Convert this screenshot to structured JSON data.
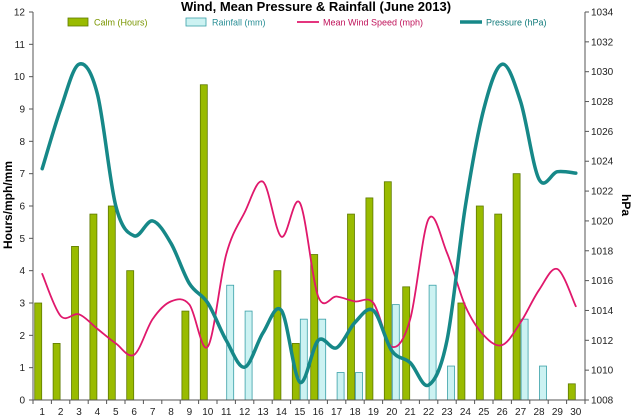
{
  "chart_data": {
    "type": "bar",
    "title": "Wind, Mean Pressure & Rainfall (June 2013)",
    "ylabel_left": "Hours/mph/mm",
    "ylabel_right": "hPa",
    "xlabel": "",
    "ylim_left": [
      0,
      12
    ],
    "ylim_right": [
      1008,
      1034
    ],
    "yticks_left": [
      "0",
      "1",
      "2",
      "3",
      "4",
      "5",
      "6",
      "7",
      "8",
      "9",
      "10",
      "11",
      "12"
    ],
    "yticks_right": [
      "1008",
      "1010",
      "1012",
      "1014",
      "1016",
      "1018",
      "1020",
      "1022",
      "1024",
      "1026",
      "1028",
      "1030",
      "1032",
      "1034"
    ],
    "categories": [
      "1",
      "2",
      "3",
      "4",
      "5",
      "6",
      "7",
      "8",
      "9",
      "10",
      "11",
      "12",
      "13",
      "14",
      "15",
      "16",
      "17",
      "18",
      "19",
      "20",
      "21",
      "22",
      "23",
      "24",
      "25",
      "26",
      "27",
      "28",
      "29",
      "30"
    ],
    "grid": false,
    "legend_position": "top",
    "series": [
      {
        "name": "Calm (Hours)",
        "kind": "bar",
        "axis": "left",
        "color": "#99bb00",
        "values": [
          3.0,
          1.75,
          4.75,
          5.75,
          6.0,
          4.0,
          0,
          0,
          2.75,
          9.75,
          0,
          0,
          0,
          4.0,
          1.75,
          4.5,
          0,
          5.75,
          6.25,
          6.75,
          3.5,
          0,
          0,
          3.0,
          6.0,
          5.75,
          7.0,
          0,
          0,
          0.5
        ]
      },
      {
        "name": "Rainfall (mm)",
        "kind": "bar",
        "axis": "left",
        "color": "#ccf2f2",
        "values": [
          0,
          0,
          0,
          0,
          0,
          0,
          0,
          0,
          0,
          0,
          3.55,
          2.75,
          0,
          0,
          2.5,
          2.5,
          0.85,
          0.85,
          0,
          2.95,
          0,
          3.55,
          1.05,
          0,
          0,
          0,
          2.5,
          1.05,
          0,
          0
        ]
      },
      {
        "name": "Mean Wind Speed (mph)",
        "kind": "line",
        "axis": "left",
        "color": "#e0186c",
        "values": [
          3.9,
          2.6,
          2.65,
          2.2,
          1.75,
          1.4,
          2.5,
          3.05,
          2.95,
          1.65,
          4.5,
          5.8,
          6.75,
          5.05,
          6.1,
          3.2,
          3.2,
          3.05,
          3.0,
          1.65,
          2.5,
          5.6,
          4.55,
          2.9,
          2.0,
          1.7,
          2.4,
          3.4,
          4.05,
          2.9
        ]
      },
      {
        "name": "Pressure (hPa)",
        "kind": "line",
        "axis": "right",
        "color": "#168888",
        "values": [
          1023.5,
          1027.5,
          1030.5,
          1028.5,
          1021.0,
          1019.0,
          1020.0,
          1018.5,
          1015.8,
          1014.5,
          1012.0,
          1010.2,
          1012.5,
          1014.0,
          1009.2,
          1012.0,
          1011.5,
          1013.2,
          1014.0,
          1011.3,
          1010.5,
          1009.0,
          1012.0,
          1021.0,
          1027.5,
          1030.5,
          1028.0,
          1022.8,
          1023.3,
          1023.2
        ]
      }
    ]
  }
}
